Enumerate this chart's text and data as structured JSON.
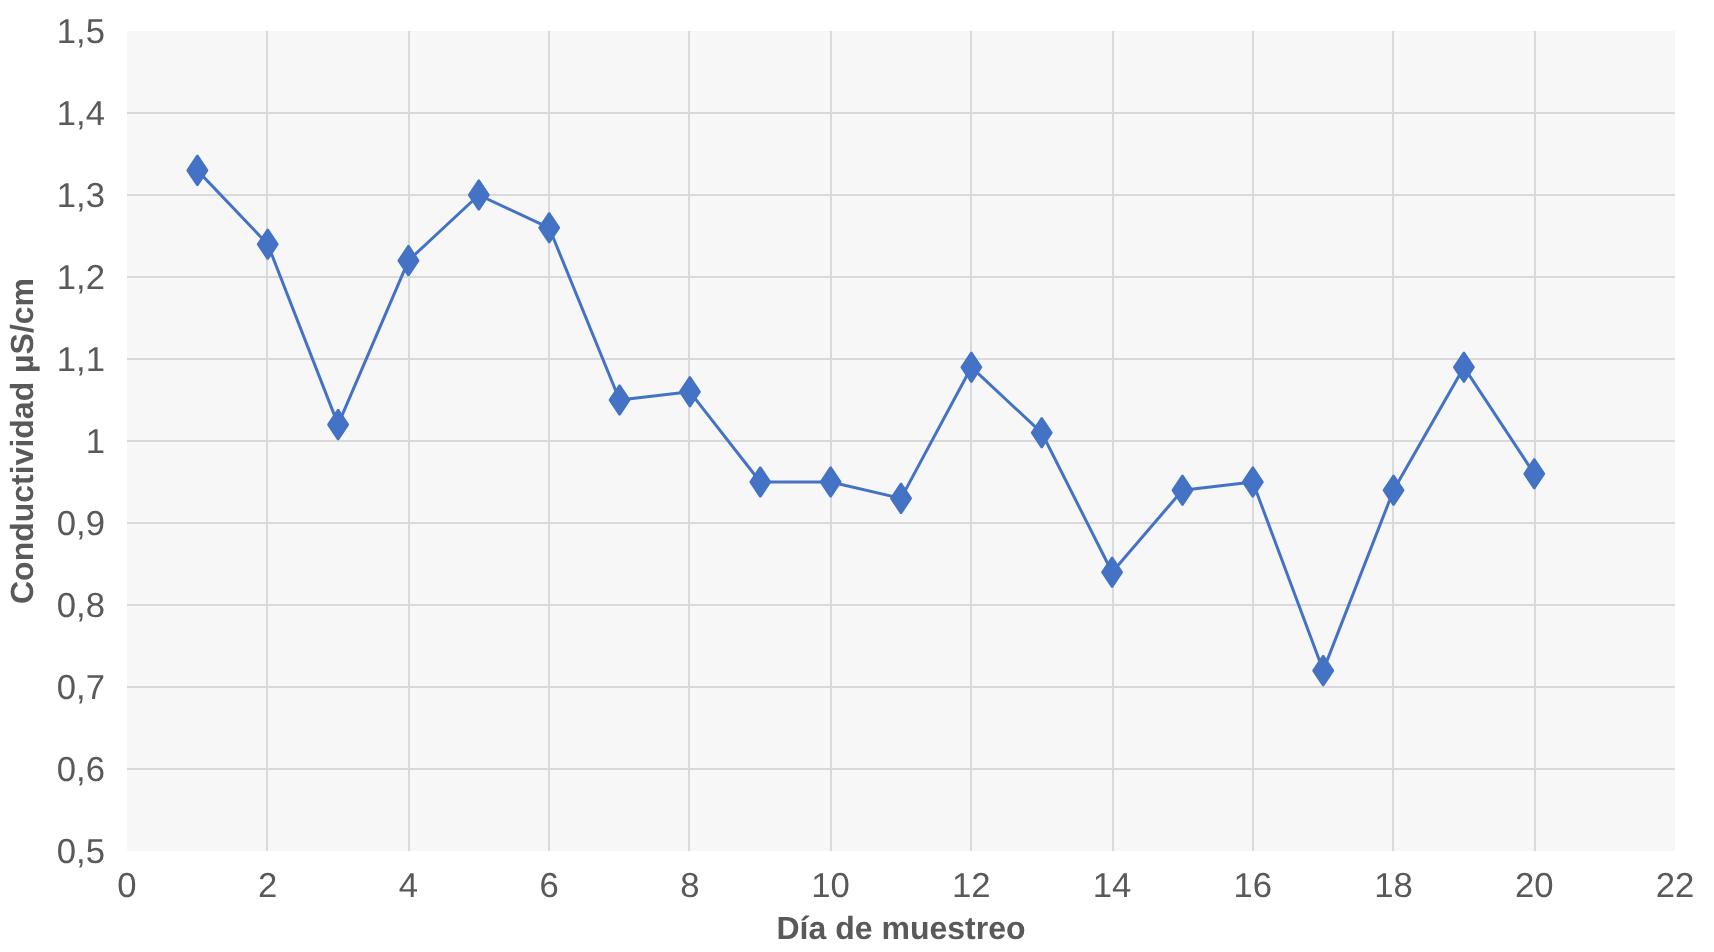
{
  "chart_data": {
    "type": "line",
    "xlabel": "Día de muestreo",
    "ylabel": "Conductividad µS/cm",
    "x": [
      1,
      2,
      3,
      4,
      5,
      6,
      7,
      8,
      9,
      10,
      11,
      12,
      13,
      14,
      15,
      16,
      17,
      18,
      19,
      20
    ],
    "series": [
      {
        "color": "#4472c4",
        "values": [
          1.33,
          1.24,
          1.02,
          1.22,
          1.3,
          1.26,
          1.05,
          1.06,
          0.95,
          0.95,
          0.93,
          1.09,
          1.01,
          0.84,
          0.94,
          0.95,
          0.72,
          0.94,
          1.09,
          0.96
        ]
      }
    ],
    "xlim": [
      0,
      22
    ],
    "xticks": [
      0,
      2,
      4,
      6,
      8,
      10,
      12,
      14,
      16,
      18,
      20,
      22
    ],
    "ylim": [
      0.5,
      1.5
    ],
    "yticks": [
      {
        "value": 0.5,
        "label": "0,5"
      },
      {
        "value": 0.6,
        "label": "0,6"
      },
      {
        "value": 0.7,
        "label": "0,7"
      },
      {
        "value": 0.8,
        "label": "0,8"
      },
      {
        "value": 0.9,
        "label": "0,9"
      },
      1,
      {
        "value": 1.1,
        "label": "1,1"
      },
      {
        "value": 1.2,
        "label": "1,2"
      },
      {
        "value": 1.3,
        "label": "1,3"
      },
      {
        "value": 1.4,
        "label": "1,4"
      },
      {
        "value": 1.5,
        "label": "1,5"
      }
    ],
    "grid": true,
    "marker": "diamond",
    "line_style": "solid"
  }
}
